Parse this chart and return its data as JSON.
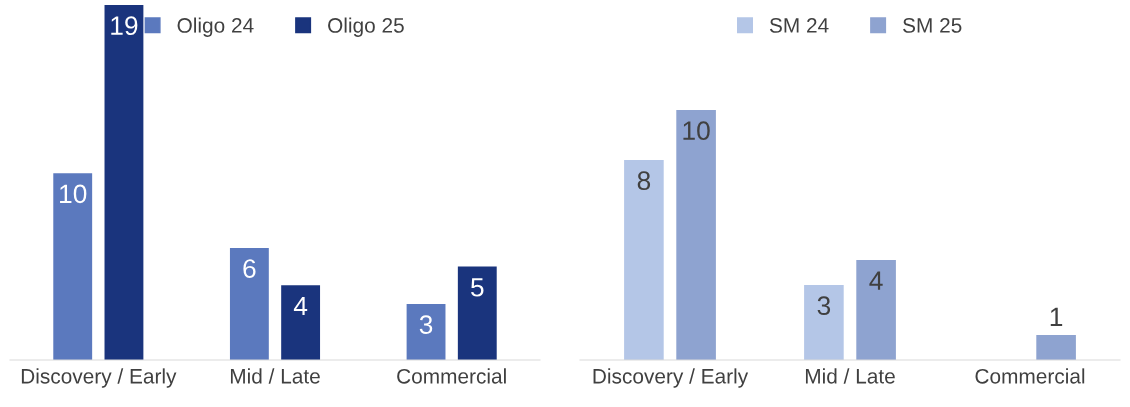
{
  "chart_data": [
    {
      "type": "bar",
      "categories": [
        "Discovery / Early",
        "Mid / Late",
        "Commercial"
      ],
      "tick_labels": "x",
      "data_labels": true,
      "legend": "top",
      "grid": false,
      "series": [
        {
          "name": "Oligo 24",
          "color": "#5b79be",
          "values": [
            10,
            6,
            3
          ]
        },
        {
          "name": "Oligo 25",
          "color": "#1a347d",
          "values": [
            19,
            4,
            5
          ]
        }
      ]
    },
    {
      "type": "bar",
      "categories": [
        "Discovery / Early",
        "Mid / Late",
        "Commercial"
      ],
      "tick_labels": "x",
      "data_labels": true,
      "legend": "top",
      "grid": false,
      "series": [
        {
          "name": "SM 24",
          "color": "#b4c6e7",
          "values": [
            8,
            3,
            null
          ]
        },
        {
          "name": "SM 25",
          "color": "#8ea3d0",
          "values": [
            10,
            4,
            1
          ]
        }
      ]
    }
  ]
}
